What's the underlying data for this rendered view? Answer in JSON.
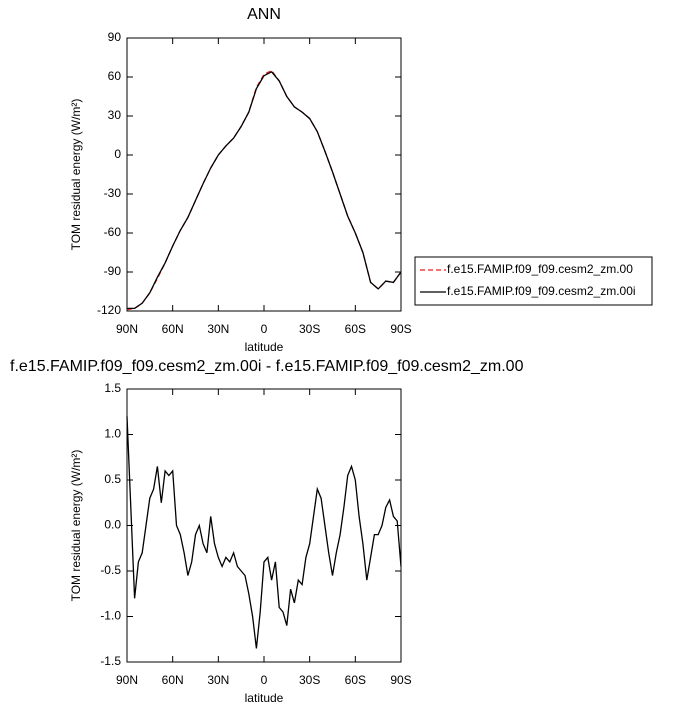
{
  "chart_data": [
    {
      "type": "line",
      "title": "ANN",
      "xlabel": "latitude",
      "ylabel": "TOM residual energy (W/m²)",
      "x": [
        90,
        85,
        80,
        75,
        70,
        65,
        60,
        55,
        50,
        45,
        40,
        35,
        30,
        25,
        20,
        15,
        10,
        5,
        0,
        -5,
        -10,
        -15,
        -20,
        -25,
        -30,
        -35,
        -40,
        -45,
        -50,
        -55,
        -60,
        -65,
        -70,
        -75,
        -80,
        -85,
        -90
      ],
      "series": [
        {
          "name": "f.e15.FAMIP.f09_f09.cesm2_zm.00",
          "color": "#e02020",
          "dash": true,
          "values": [
            -119,
            -118,
            -114,
            -106,
            -95,
            -83,
            -70,
            -58,
            -48,
            -35,
            -22,
            -10,
            0,
            7,
            13,
            22,
            33,
            52,
            62,
            65,
            57,
            45,
            37,
            33,
            28,
            18,
            3,
            -13,
            -30,
            -47,
            -60,
            -75,
            -98,
            -103,
            -97,
            -98,
            -90
          ]
        },
        {
          "name": "f.e15.FAMIP.f09_f09.cesm2_zm.00i",
          "color": "#000000",
          "dash": false,
          "values": [
            -118,
            -118,
            -114,
            -106,
            -94,
            -83,
            -70,
            -58,
            -48,
            -35,
            -22,
            -10,
            0,
            7,
            13,
            22,
            33,
            51,
            61,
            64,
            57,
            45,
            37,
            33,
            28,
            18,
            3,
            -13,
            -30,
            -47,
            -60,
            -75,
            -98,
            -103,
            -97,
            -98,
            -90
          ]
        }
      ],
      "xlim": [
        90,
        -90
      ],
      "xticks": [
        {
          "value": 90,
          "label": "90N"
        },
        {
          "value": 60,
          "label": "60N"
        },
        {
          "value": 30,
          "label": "30N"
        },
        0,
        {
          "value": -30,
          "label": "30S"
        },
        {
          "value": -60,
          "label": "60S"
        },
        {
          "value": -90,
          "label": "90S"
        }
      ],
      "ylim": [
        -120,
        90
      ],
      "yticks": [
        -120,
        -90,
        -60,
        -30,
        0,
        30,
        60,
        90
      ],
      "legend": "outside-right"
    },
    {
      "type": "line",
      "title": "f.e15.FAMIP.f09_f09.cesm2_zm.00i - f.e15.FAMIP.f09_f09.cesm2_zm.00",
      "xlabel": "latitude",
      "ylabel": "TOM residual energy (W/m²)",
      "x": [
        90,
        87.5,
        85,
        82.5,
        80,
        77.5,
        75,
        72.5,
        70,
        67.5,
        65,
        62.5,
        60,
        57.5,
        55,
        52.5,
        50,
        47.5,
        45,
        42.5,
        40,
        37.5,
        35,
        32.5,
        30,
        27.5,
        25,
        22.5,
        20,
        17.5,
        15,
        12.5,
        10,
        7.5,
        5,
        2.5,
        0,
        -2.5,
        -5,
        -7.5,
        -10,
        -12.5,
        -15,
        -17.5,
        -20,
        -22.5,
        -25,
        -27.5,
        -30,
        -32.5,
        -35,
        -37.5,
        -40,
        -42.5,
        -45,
        -47.5,
        -50,
        -52.5,
        -55,
        -57.5,
        -60,
        -62.5,
        -65,
        -67.5,
        -70,
        -72.5,
        -75,
        -77.5,
        -80,
        -82.5,
        -85,
        -87.5,
        -90
      ],
      "values": [
        1.2,
        0.2,
        -0.8,
        -0.4,
        -0.3,
        0.0,
        0.3,
        0.4,
        0.65,
        0.25,
        0.6,
        0.55,
        0.6,
        0.0,
        -0.1,
        -0.3,
        -0.55,
        -0.4,
        -0.1,
        0.0,
        -0.2,
        -0.3,
        0.1,
        -0.2,
        -0.35,
        -0.45,
        -0.35,
        -0.4,
        -0.3,
        -0.45,
        -0.5,
        -0.55,
        -0.75,
        -1.0,
        -1.35,
        -0.95,
        -0.4,
        -0.35,
        -0.6,
        -0.4,
        -0.9,
        -0.95,
        -1.1,
        -0.7,
        -0.85,
        -0.6,
        -0.65,
        -0.35,
        -0.2,
        0.1,
        0.4,
        0.3,
        0.0,
        -0.3,
        -0.55,
        -0.3,
        -0.1,
        0.2,
        0.55,
        0.65,
        0.5,
        0.1,
        -0.2,
        -0.6,
        -0.35,
        -0.1,
        -0.1,
        0.0,
        0.2,
        0.28,
        0.1,
        0.05,
        -0.45
      ],
      "color": "#000000",
      "xlim": [
        90,
        -90
      ],
      "xticks": [
        {
          "value": 90,
          "label": "90N"
        },
        {
          "value": 60,
          "label": "60N"
        },
        {
          "value": 30,
          "label": "30N"
        },
        0,
        {
          "value": -30,
          "label": "30S"
        },
        {
          "value": -60,
          "label": "60S"
        },
        {
          "value": -90,
          "label": "90S"
        }
      ],
      "ylim": [
        -1.5,
        1.5
      ],
      "yticks": [
        {
          "value": -1.5,
          "label": "-1.5"
        },
        {
          "value": -1,
          "label": "-1.0"
        },
        -0.5,
        {
          "value": 0,
          "label": "0.0"
        },
        0.5,
        {
          "value": 1,
          "label": "1.0"
        },
        1.5
      ]
    }
  ]
}
